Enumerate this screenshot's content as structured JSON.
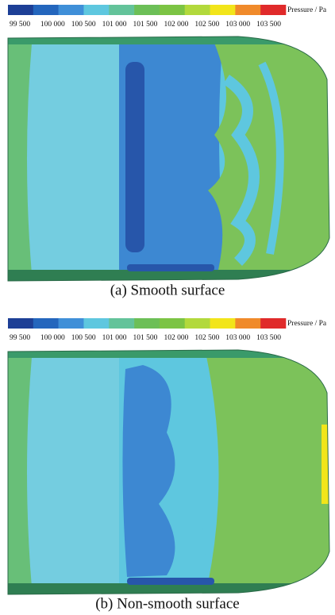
{
  "panels": [
    {
      "legend": {
        "colors": [
          "#1d3f96",
          "#2466bd",
          "#3f8fd8",
          "#5ec7df",
          "#63c39a",
          "#6cbf57",
          "#7cc444",
          "#b2d93c",
          "#f2e51a",
          "#f08a2a",
          "#e02a2a"
        ],
        "labels": [
          "99 500",
          "100 000",
          "100 500",
          "101 000",
          "101 500",
          "102 000",
          "102 500",
          "103 000",
          "103 500"
        ],
        "unit": "Pressure / Pa"
      },
      "caption": "(a) Smooth surface"
    },
    {
      "legend": {
        "colors": [
          "#1d3f96",
          "#2466bd",
          "#3f8fd8",
          "#5ec7df",
          "#63c39a",
          "#6cbf57",
          "#7cc444",
          "#b2d93c",
          "#f2e51a",
          "#f08a2a",
          "#e02a2a"
        ],
        "labels": [
          "99 500",
          "100 000",
          "100 500",
          "101 000",
          "101 500",
          "102 000",
          "102 500",
          "103 000",
          "103 500"
        ],
        "unit": "Pressure / Pa"
      },
      "caption": "(b) Non-smooth surface"
    }
  ]
}
